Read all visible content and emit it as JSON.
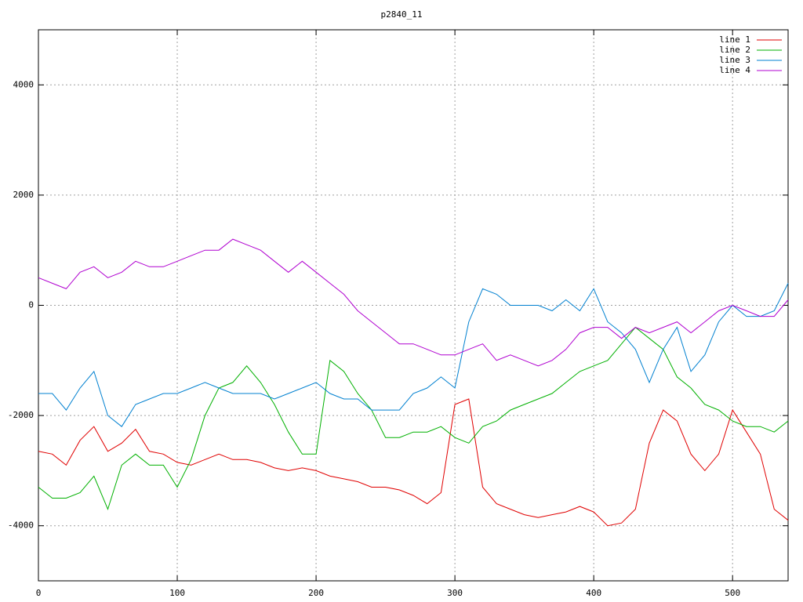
{
  "chart_data": {
    "type": "line",
    "title": "p2840_11",
    "x": [
      0,
      10,
      20,
      30,
      40,
      50,
      60,
      70,
      80,
      90,
      100,
      110,
      120,
      130,
      140,
      150,
      160,
      170,
      180,
      190,
      200,
      210,
      220,
      230,
      240,
      250,
      260,
      270,
      280,
      290,
      300,
      310,
      320,
      330,
      340,
      350,
      360,
      370,
      380,
      390,
      400,
      410,
      420,
      430,
      440,
      450,
      460,
      470,
      480,
      490,
      500,
      510,
      520,
      530,
      540
    ],
    "series": [
      {
        "name": "line 1",
        "color": "#e00000",
        "values": [
          -2650,
          -2700,
          -2900,
          -2450,
          -2200,
          -2650,
          -2500,
          -2250,
          -2650,
          -2700,
          -2850,
          -2900,
          -2800,
          -2700,
          -2800,
          -2800,
          -2850,
          -2950,
          -3000,
          -2950,
          -3000,
          -3100,
          -3150,
          -3200,
          -3300,
          -3300,
          -3350,
          -3450,
          -3600,
          -3400,
          -1800,
          -1700,
          -3300,
          -3600,
          -3700,
          -3800,
          -3850,
          -3800,
          -3750,
          -3650,
          -3750,
          -4000,
          -3950,
          -3700,
          -2500,
          -1900,
          -2100,
          -2700,
          -3000,
          -2700,
          -1900,
          -2300,
          -2700,
          -3700,
          -3900
        ]
      },
      {
        "name": "line 2",
        "color": "#00b000",
        "values": [
          -3300,
          -3500,
          -3500,
          -3400,
          -3100,
          -3700,
          -2900,
          -2700,
          -2900,
          -2900,
          -3300,
          -2800,
          -2000,
          -1500,
          -1400,
          -1100,
          -1400,
          -1800,
          -2300,
          -2700,
          -2700,
          -1000,
          -1200,
          -1600,
          -1900,
          -2400,
          -2400,
          -2300,
          -2300,
          -2200,
          -2400,
          -2500,
          -2200,
          -2100,
          -1900,
          -1800,
          -1700,
          -1600,
          -1400,
          -1200,
          -1100,
          -1000,
          -700,
          -400,
          -600,
          -800,
          -1300,
          -1500,
          -1800,
          -1900,
          -2100,
          -2200,
          -2200,
          -2300,
          -2100
        ]
      },
      {
        "name": "line 3",
        "color": "#0080d0",
        "values": [
          -1600,
          -1600,
          -1900,
          -1500,
          -1200,
          -2000,
          -2200,
          -1800,
          -1700,
          -1600,
          -1600,
          -1500,
          -1400,
          -1500,
          -1600,
          -1600,
          -1600,
          -1700,
          -1600,
          -1500,
          -1400,
          -1600,
          -1700,
          -1700,
          -1900,
          -1900,
          -1900,
          -1600,
          -1500,
          -1300,
          -1500,
          -300,
          300,
          200,
          0,
          0,
          0,
          -100,
          100,
          -100,
          300,
          -300,
          -500,
          -800,
          -1400,
          -800,
          -400,
          -1200,
          -900,
          -300,
          0,
          -200,
          -200,
          -100,
          400
        ]
      },
      {
        "name": "line 4",
        "color": "#b000d0",
        "values": [
          500,
          400,
          300,
          600,
          700,
          500,
          600,
          800,
          700,
          700,
          800,
          900,
          1000,
          1000,
          1200,
          1100,
          1000,
          800,
          600,
          800,
          600,
          400,
          200,
          -100,
          -300,
          -500,
          -700,
          -700,
          -800,
          -900,
          -900,
          -800,
          -700,
          -1000,
          -900,
          -1000,
          -1100,
          -1000,
          -800,
          -500,
          -400,
          -400,
          -600,
          -400,
          -500,
          -400,
          -300,
          -500,
          -300,
          -100,
          0,
          -100,
          -200,
          -200,
          100
        ]
      }
    ],
    "xlim": [
      0,
      540
    ],
    "ylim": [
      -5000,
      5000
    ],
    "xticks": [
      0,
      100,
      200,
      300,
      400,
      500
    ],
    "yticks": [
      -4000,
      -2000,
      0,
      2000,
      4000
    ],
    "grid": true,
    "legend": "top-right"
  }
}
